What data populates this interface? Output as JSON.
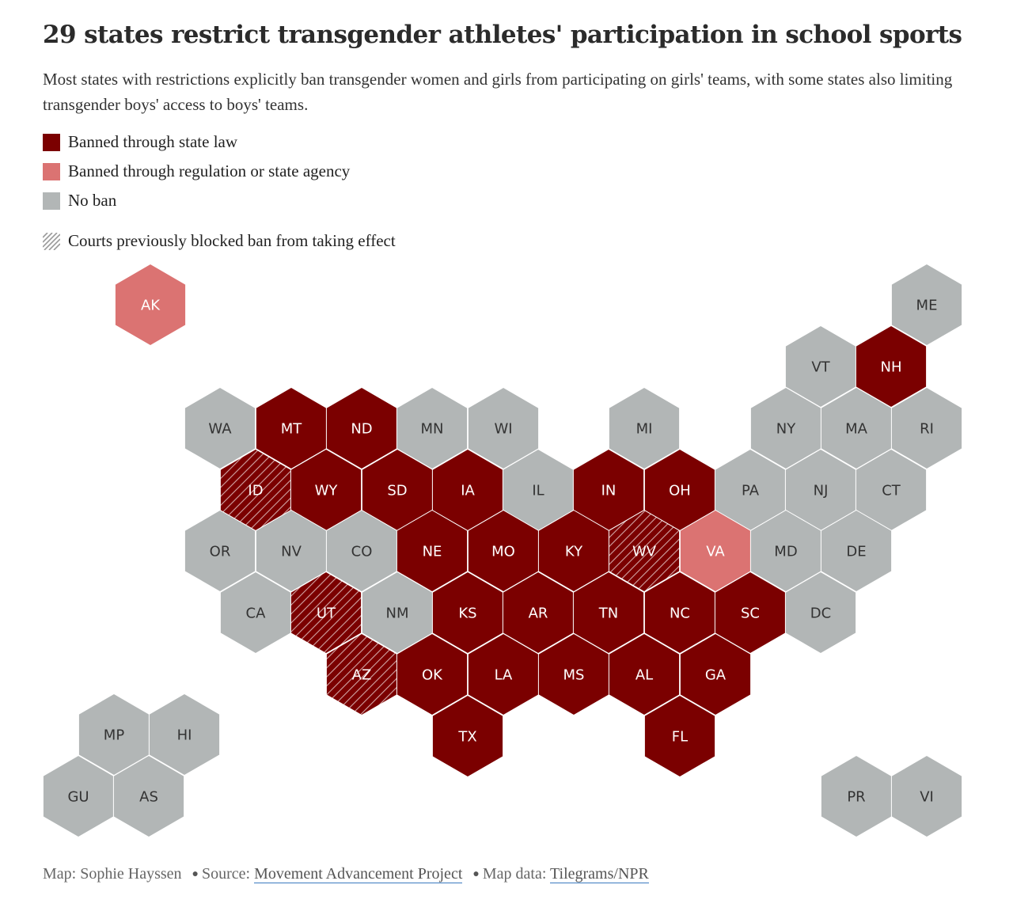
{
  "title": "29 states restrict transgender athletes' participation in school sports",
  "subtitle": "Most states with restrictions explicitly ban transgender women and girls from participating on girls' teams, with some states also limiting transgender boys' access to boys' teams.",
  "colors": {
    "law": "#7b0000",
    "regulation": "#db7372",
    "none": "#b2b6b6",
    "label_dark": "#333333",
    "label_light": "#ffffff"
  },
  "legend": {
    "law": "Banned through state law",
    "regulation": "Banned through regulation or state agency",
    "none": "No ban",
    "courts": "Courts previously blocked ban from taking effect"
  },
  "states": [
    {
      "abbr": "AK",
      "status": "regulation",
      "blocked": false
    },
    {
      "abbr": "ME",
      "status": "none",
      "blocked": false
    },
    {
      "abbr": "VT",
      "status": "none",
      "blocked": false
    },
    {
      "abbr": "NH",
      "status": "law",
      "blocked": false
    },
    {
      "abbr": "WA",
      "status": "none",
      "blocked": false
    },
    {
      "abbr": "MT",
      "status": "law",
      "blocked": false
    },
    {
      "abbr": "ND",
      "status": "law",
      "blocked": false
    },
    {
      "abbr": "MN",
      "status": "none",
      "blocked": false
    },
    {
      "abbr": "WI",
      "status": "none",
      "blocked": false
    },
    {
      "abbr": "MI",
      "status": "none",
      "blocked": false
    },
    {
      "abbr": "NY",
      "status": "none",
      "blocked": false
    },
    {
      "abbr": "MA",
      "status": "none",
      "blocked": false
    },
    {
      "abbr": "RI",
      "status": "none",
      "blocked": false
    },
    {
      "abbr": "ID",
      "status": "law",
      "blocked": true
    },
    {
      "abbr": "WY",
      "status": "law",
      "blocked": false
    },
    {
      "abbr": "SD",
      "status": "law",
      "blocked": false
    },
    {
      "abbr": "IA",
      "status": "law",
      "blocked": false
    },
    {
      "abbr": "IL",
      "status": "none",
      "blocked": false
    },
    {
      "abbr": "IN",
      "status": "law",
      "blocked": false
    },
    {
      "abbr": "OH",
      "status": "law",
      "blocked": false
    },
    {
      "abbr": "PA",
      "status": "none",
      "blocked": false
    },
    {
      "abbr": "NJ",
      "status": "none",
      "blocked": false
    },
    {
      "abbr": "CT",
      "status": "none",
      "blocked": false
    },
    {
      "abbr": "OR",
      "status": "none",
      "blocked": false
    },
    {
      "abbr": "NV",
      "status": "none",
      "blocked": false
    },
    {
      "abbr": "CO",
      "status": "none",
      "blocked": false
    },
    {
      "abbr": "NE",
      "status": "law",
      "blocked": false
    },
    {
      "abbr": "MO",
      "status": "law",
      "blocked": false
    },
    {
      "abbr": "KY",
      "status": "law",
      "blocked": false
    },
    {
      "abbr": "WV",
      "status": "law",
      "blocked": true
    },
    {
      "abbr": "VA",
      "status": "regulation",
      "blocked": false
    },
    {
      "abbr": "MD",
      "status": "none",
      "blocked": false
    },
    {
      "abbr": "DE",
      "status": "none",
      "blocked": false
    },
    {
      "abbr": "CA",
      "status": "none",
      "blocked": false
    },
    {
      "abbr": "UT",
      "status": "law",
      "blocked": true
    },
    {
      "abbr": "NM",
      "status": "none",
      "blocked": false
    },
    {
      "abbr": "KS",
      "status": "law",
      "blocked": false
    },
    {
      "abbr": "AR",
      "status": "law",
      "blocked": false
    },
    {
      "abbr": "TN",
      "status": "law",
      "blocked": false
    },
    {
      "abbr": "NC",
      "status": "law",
      "blocked": false
    },
    {
      "abbr": "SC",
      "status": "law",
      "blocked": false
    },
    {
      "abbr": "DC",
      "status": "none",
      "blocked": false
    },
    {
      "abbr": "AZ",
      "status": "law",
      "blocked": true
    },
    {
      "abbr": "OK",
      "status": "law",
      "blocked": false
    },
    {
      "abbr": "LA",
      "status": "law",
      "blocked": false
    },
    {
      "abbr": "MS",
      "status": "law",
      "blocked": false
    },
    {
      "abbr": "AL",
      "status": "law",
      "blocked": false
    },
    {
      "abbr": "GA",
      "status": "law",
      "blocked": false
    },
    {
      "abbr": "TX",
      "status": "law",
      "blocked": false
    },
    {
      "abbr": "FL",
      "status": "law",
      "blocked": false
    },
    {
      "abbr": "MP",
      "status": "none",
      "blocked": false
    },
    {
      "abbr": "HI",
      "status": "none",
      "blocked": false
    },
    {
      "abbr": "GU",
      "status": "none",
      "blocked": false
    },
    {
      "abbr": "AS",
      "status": "none",
      "blocked": false
    },
    {
      "abbr": "PR",
      "status": "none",
      "blocked": false
    },
    {
      "abbr": "VI",
      "status": "none",
      "blocked": false
    }
  ],
  "footer": {
    "map_credit": "Map: Sophie Hayssen",
    "source_prefix": "Source:",
    "source_link": "Movement Advancement Project",
    "mapdata_prefix": "Map data:",
    "mapdata_link": "Tilegrams/NPR",
    "separator": "●"
  }
}
